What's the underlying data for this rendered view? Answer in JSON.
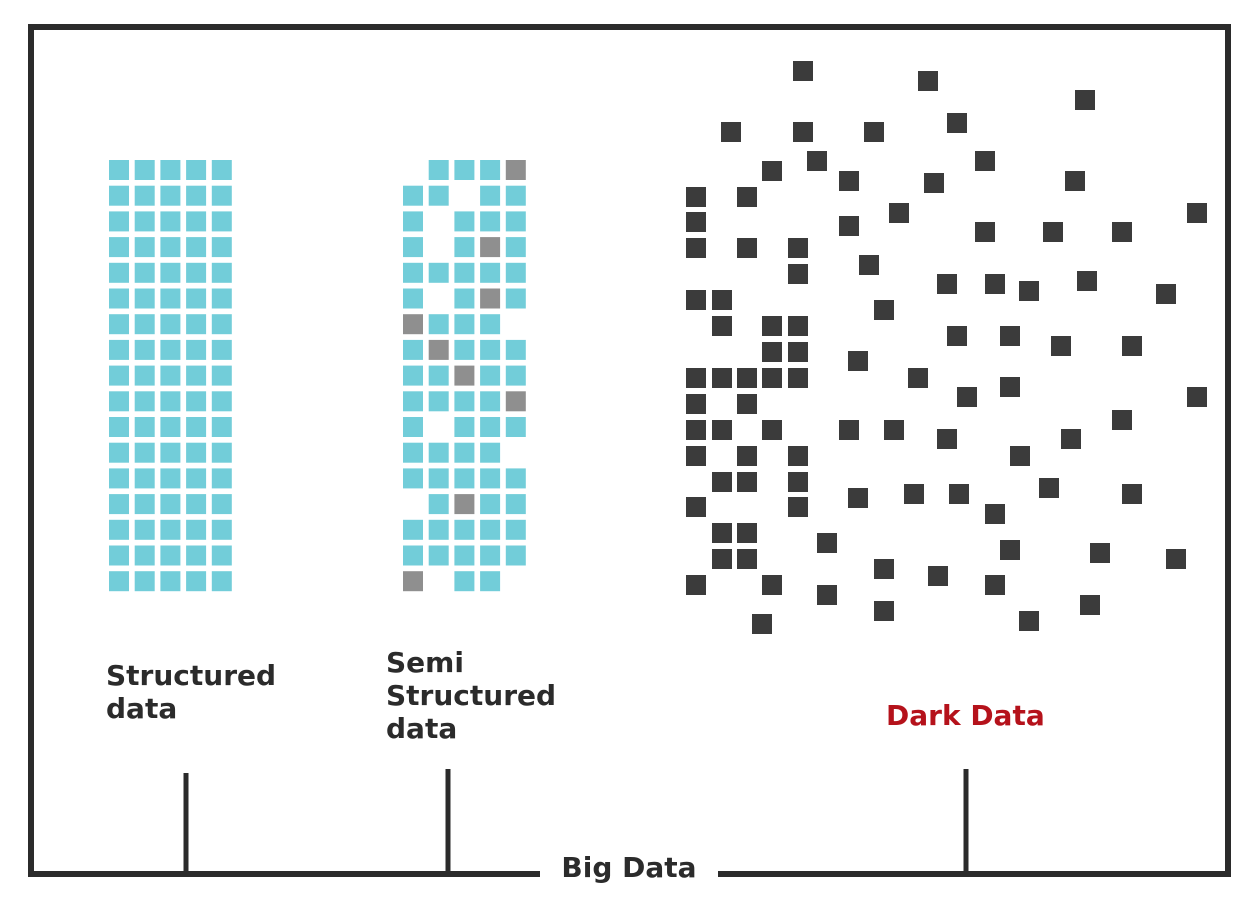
{
  "labels": {
    "structured": "Structured\ndata",
    "semi_structured": "Semi\nStructured\ndata",
    "dark": "Dark Data",
    "big_data": "Big Data"
  },
  "colors": {
    "structured_cell": "#72cdd9",
    "semi_gray_cell": "#8f8f8f",
    "dark_cell": "#3b3b3b",
    "dark_label": "#b5121b",
    "frame": "#2b2b2b",
    "text": "#2b2b2b"
  },
  "structured_grid": {
    "rows": 17,
    "cols": 5
  },
  "semi_structured_grid": [
    "_CCCG",
    "CC_CC",
    "C_CCC",
    "C_CGC",
    "CCCCC",
    "C_CGC",
    "GCCC_",
    "CGCCC",
    "CCGCC",
    "CCCCG",
    "C_CCC",
    "CCCC_",
    "CCCCC",
    "_CGCC",
    "CCCCC",
    "CCCCC",
    "G_CC_"
  ]
}
